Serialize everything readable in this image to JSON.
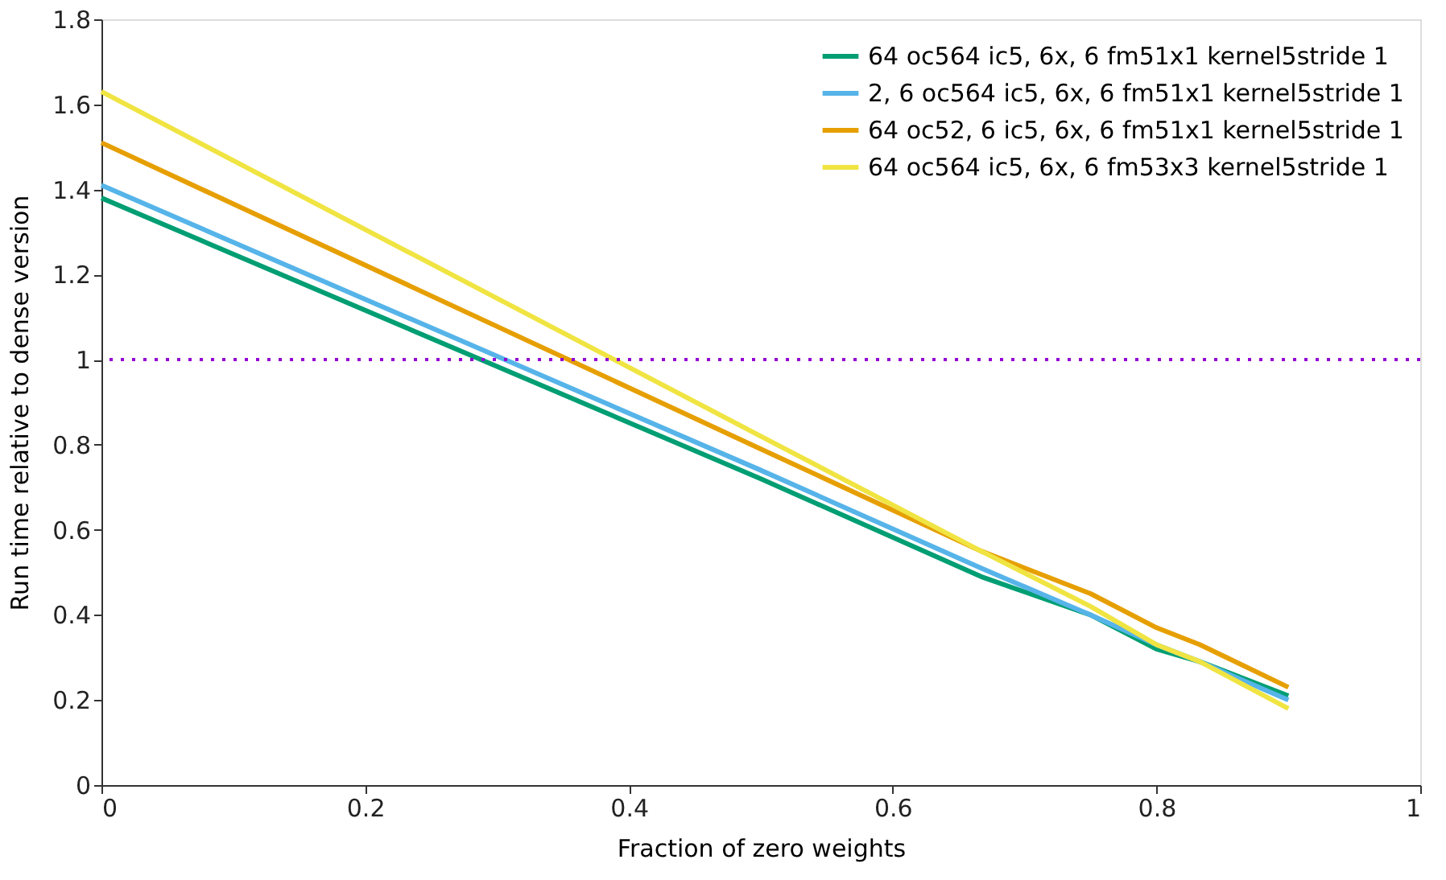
{
  "chart_data": {
    "type": "line",
    "xlabel": "Fraction of zero weights",
    "ylabel": "Run time relative to dense version",
    "x": [
      0,
      0.5,
      0.667,
      0.75,
      0.8,
      0.833,
      0.9
    ],
    "series": [
      {
        "name": "64 oc564 ic5, 6x, 6 fm51x1 kernel5stride 1",
        "color": "#009e73",
        "values": [
          1.38,
          0.72,
          0.49,
          0.4,
          0.32,
          0.29,
          0.21
        ]
      },
      {
        "name": "2, 6 oc564 ic5, 6x, 6 fm51x1 kernel5stride 1",
        "color": "#56b4e9",
        "values": [
          1.41,
          0.74,
          0.51,
          0.4,
          0.33,
          0.29,
          0.2
        ]
      },
      {
        "name": "64 oc52, 6 ic5, 6x, 6 fm51x1 kernel5stride 1",
        "color": "#e69f00",
        "values": [
          1.51,
          0.79,
          0.55,
          0.45,
          0.37,
          0.33,
          0.23
        ]
      },
      {
        "name": "64 oc564 ic5, 6x, 6 fm53x3 kernel5stride 1",
        "color": "#f0e442",
        "values": [
          1.63,
          0.82,
          0.55,
          0.42,
          0.33,
          0.29,
          0.18
        ]
      }
    ],
    "xlim": [
      0,
      1
    ],
    "xticks": [
      0,
      0.2,
      0.4,
      0.6,
      0.8,
      1
    ],
    "ylim": [
      0,
      1.8
    ],
    "yticks": [
      0,
      0.2,
      0.4,
      0.6,
      0.8,
      1,
      1.2,
      1.4,
      1.6,
      1.8
    ],
    "ref_lines": [
      {
        "axis": "y",
        "value": 1,
        "color": "#9400d3",
        "line_style": "dotted"
      }
    ],
    "grid": false,
    "legend": "top right",
    "marker": "none",
    "line_style": "solid"
  }
}
